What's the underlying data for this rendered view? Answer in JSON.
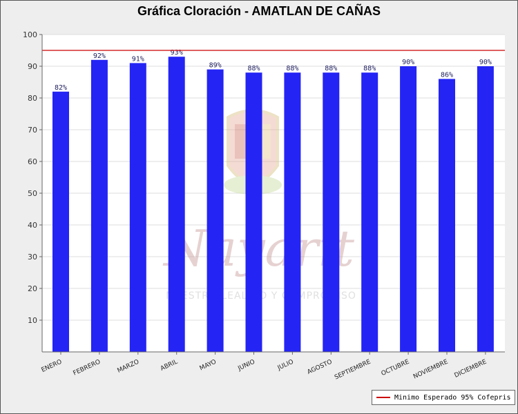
{
  "chart_data": {
    "type": "bar",
    "title": "Gráfica Cloración - AMATLAN DE CAÑAS",
    "xlabel": "",
    "ylabel": "",
    "ylim": [
      0,
      100
    ],
    "yticks": [
      10,
      20,
      30,
      40,
      50,
      60,
      70,
      80,
      90,
      100
    ],
    "grid": true,
    "categories": [
      "ENERO",
      "FEBRERO",
      "MARZO",
      "ABRIL",
      "MAYO",
      "JUNIO",
      "JULIO",
      "AGOSTO",
      "SEPTIEMBRE",
      "OCTUBRE",
      "NOVIEMBRE",
      "DICIEMBRE"
    ],
    "values": [
      82,
      92,
      91,
      93,
      89,
      88,
      88,
      88,
      88,
      90,
      86,
      90
    ],
    "data_labels": [
      "82%",
      "92%",
      "91%",
      "93%",
      "89%",
      "88%",
      "88%",
      "88%",
      "88%",
      "90%",
      "86%",
      "90%"
    ],
    "bar_color": "#2424f5",
    "reference_line": {
      "value": 95,
      "label": "Minimo Esperado 95% Cofepris",
      "color": "#cc0000"
    },
    "legend_position": "bottom-right"
  },
  "watermark": {
    "script_text": "Nayarit",
    "motto": "NUESTRO LEALTAD Y COMPROMISO",
    "emblem": "coat-of-arms-icon"
  }
}
